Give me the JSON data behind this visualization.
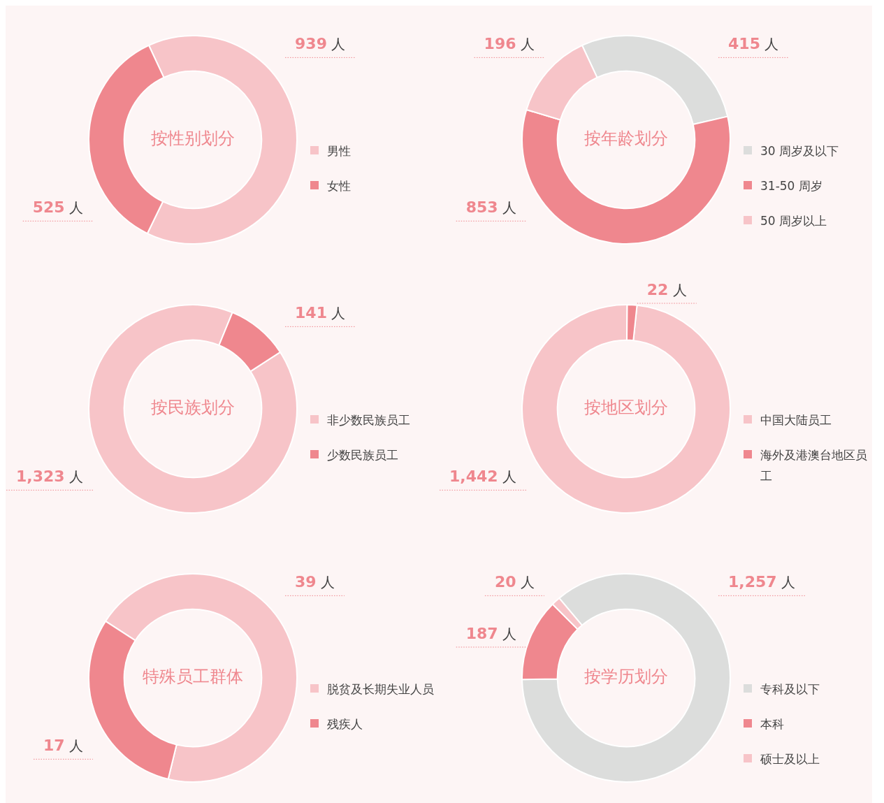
{
  "chart_data": [
    {
      "type": "donut",
      "title": "按性别划分",
      "categories": [
        "男性",
        "女性"
      ],
      "values": [
        939,
        525
      ],
      "colors": [
        "#f7c4c8",
        "#ef878e"
      ],
      "value_labels": [
        "939 人",
        "525 人"
      ],
      "legend": "right"
    },
    {
      "type": "donut",
      "title": "按年龄划分",
      "categories": [
        "30 周岁及以下",
        "31-50 周岁",
        "50 周岁以上"
      ],
      "values": [
        415,
        853,
        196
      ],
      "colors": [
        "#dcdddc",
        "#ef878e",
        "#f7c4c8"
      ],
      "value_labels": [
        "415 人",
        "853 人",
        "196 人"
      ],
      "legend": "right"
    },
    {
      "type": "donut",
      "title": "按民族划分",
      "categories": [
        "非少数民族员工",
        "少数民族员工"
      ],
      "values": [
        1323,
        141
      ],
      "colors": [
        "#f7c4c8",
        "#ef878e"
      ],
      "value_labels": [
        "1,323 人",
        "141 人"
      ],
      "legend": "right"
    },
    {
      "type": "donut",
      "title": "按地区划分",
      "categories": [
        "中国大陆员工",
        "海外及港澳台地区员工"
      ],
      "values": [
        1442,
        22
      ],
      "colors": [
        "#f7c4c8",
        "#ef878e"
      ],
      "value_labels": [
        "1,442 人",
        "22 人"
      ],
      "legend": "right"
    },
    {
      "type": "donut",
      "title": "特殊员工群体",
      "categories": [
        "脱贫及长期失业人员",
        "残疾人"
      ],
      "values": [
        39,
        17
      ],
      "colors": [
        "#f7c4c8",
        "#ef878e"
      ],
      "value_labels": [
        "39 人",
        "17 人"
      ],
      "legend": "right"
    },
    {
      "type": "donut",
      "title": "按学历划分",
      "categories": [
        "专科及以下",
        "本科",
        "硕士及以上"
      ],
      "values": [
        1257,
        187,
        20
      ],
      "colors": [
        "#dcdddc",
        "#ef878e",
        "#f7c4c8"
      ],
      "value_labels": [
        "1,257 人",
        "187 人",
        "20 人"
      ],
      "legend": "right"
    }
  ]
}
